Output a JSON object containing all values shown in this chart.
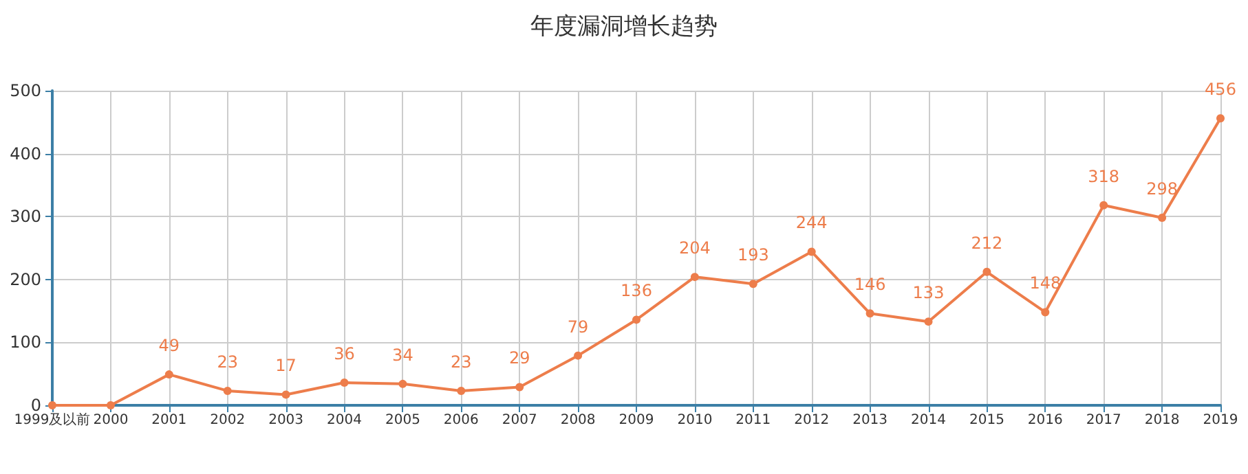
{
  "chart_data": {
    "type": "line",
    "title": "年度漏洞增长趋势",
    "categories": [
      "1999及以前",
      "2000",
      "2001",
      "2002",
      "2003",
      "2004",
      "2005",
      "2006",
      "2007",
      "2008",
      "2009",
      "2010",
      "2011",
      "2012",
      "2013",
      "2014",
      "2015",
      "2016",
      "2017",
      "2018",
      "2019"
    ],
    "series": [
      {
        "color": "#ed7d4b",
        "values": [
          0,
          0,
          49,
          23,
          17,
          36,
          34,
          23,
          29,
          79,
          136,
          204,
          193,
          244,
          146,
          133,
          212,
          148,
          318,
          298,
          456
        ],
        "value_labels": [
          null,
          null,
          "49",
          "23",
          "17",
          "36",
          "34",
          "23",
          "29",
          "79",
          "136",
          "204",
          "193",
          "244",
          "146",
          "133",
          "212",
          "148",
          "318",
          "298",
          "456"
        ]
      }
    ],
    "ylim": [
      0,
      500
    ],
    "yticks": [
      0,
      100,
      200,
      300,
      400,
      500
    ],
    "grid": true,
    "marker": "circle",
    "line_style": "solid"
  }
}
